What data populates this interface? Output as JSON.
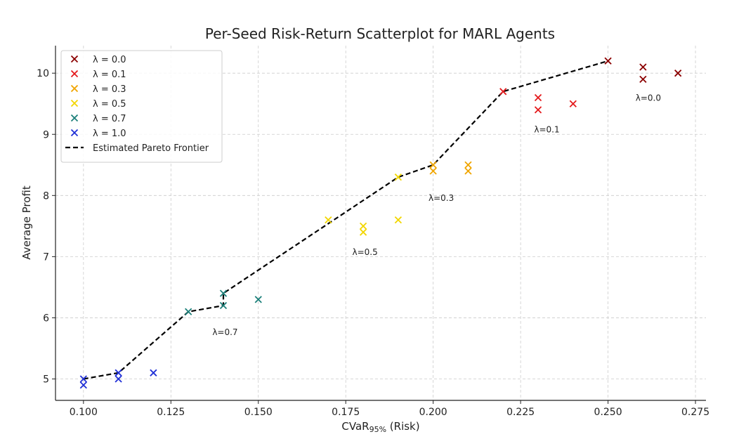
{
  "chart_data": {
    "type": "scatter",
    "title": "Per-Seed Risk-Return Scatterplot for MARL Agents",
    "xlabel": "CVaR",
    "xlabel_sub": "95%",
    "xlabel_suffix": " (Risk)",
    "ylabel": "Average Profit",
    "xlim": [
      0.092,
      0.278
    ],
    "ylim": [
      4.65,
      10.45
    ],
    "xticks": [
      0.1,
      0.125,
      0.15,
      0.175,
      0.2,
      0.225,
      0.25,
      0.275
    ],
    "xtick_labels": [
      "0.100",
      "0.125",
      "0.150",
      "0.175",
      "0.200",
      "0.225",
      "0.250",
      "0.275"
    ],
    "yticks": [
      5,
      6,
      7,
      8,
      9,
      10
    ],
    "ytick_labels": [
      "5",
      "6",
      "7",
      "8",
      "9",
      "10"
    ],
    "grid": true,
    "legend_position": "top-left",
    "series": [
      {
        "name": "λ = 0.0",
        "color": "#8b0000",
        "points": [
          [
            0.25,
            10.2
          ],
          [
            0.26,
            10.1
          ],
          [
            0.26,
            9.9
          ],
          [
            0.27,
            10.0
          ]
        ]
      },
      {
        "name": "λ = 0.1",
        "color": "#e41a1c",
        "points": [
          [
            0.22,
            9.7
          ],
          [
            0.23,
            9.6
          ],
          [
            0.23,
            9.4
          ],
          [
            0.24,
            9.5
          ]
        ]
      },
      {
        "name": "λ = 0.3",
        "color": "#f0a500",
        "points": [
          [
            0.2,
            8.5
          ],
          [
            0.2,
            8.4
          ],
          [
            0.21,
            8.5
          ],
          [
            0.21,
            8.4
          ]
        ]
      },
      {
        "name": "λ = 0.5",
        "color": "#f2d600",
        "points": [
          [
            0.17,
            7.6
          ],
          [
            0.18,
            7.5
          ],
          [
            0.18,
            7.4
          ],
          [
            0.19,
            8.3
          ],
          [
            0.19,
            7.6
          ]
        ]
      },
      {
        "name": "λ = 0.7",
        "color": "#1b7f79",
        "points": [
          [
            0.13,
            6.1
          ],
          [
            0.14,
            6.4
          ],
          [
            0.14,
            6.2
          ],
          [
            0.15,
            6.3
          ]
        ]
      },
      {
        "name": "λ = 1.0",
        "color": "#1f2fd6",
        "points": [
          [
            0.1,
            5.0
          ],
          [
            0.1,
            4.9
          ],
          [
            0.11,
            5.1
          ],
          [
            0.11,
            5.0
          ],
          [
            0.12,
            5.1
          ]
        ]
      }
    ],
    "frontier": {
      "name": "Estimated Pareto Frontier",
      "points": [
        [
          0.1,
          5.0
        ],
        [
          0.11,
          5.1
        ],
        [
          0.13,
          6.1
        ],
        [
          0.14,
          6.2
        ],
        [
          0.14,
          6.4
        ],
        [
          0.19,
          8.3
        ],
        [
          0.2,
          8.5
        ],
        [
          0.22,
          9.7
        ],
        [
          0.25,
          10.2
        ]
      ]
    },
    "annotations": [
      {
        "text": "λ=0.0",
        "x": 0.2615,
        "y": 9.55
      },
      {
        "text": "λ=0.1",
        "x": 0.2325,
        "y": 9.03
      },
      {
        "text": "λ=0.3",
        "x": 0.2023,
        "y": 7.91
      },
      {
        "text": "λ=0.5",
        "x": 0.1805,
        "y": 7.03
      },
      {
        "text": "λ=0.7",
        "x": 0.1405,
        "y": 5.72
      }
    ]
  }
}
